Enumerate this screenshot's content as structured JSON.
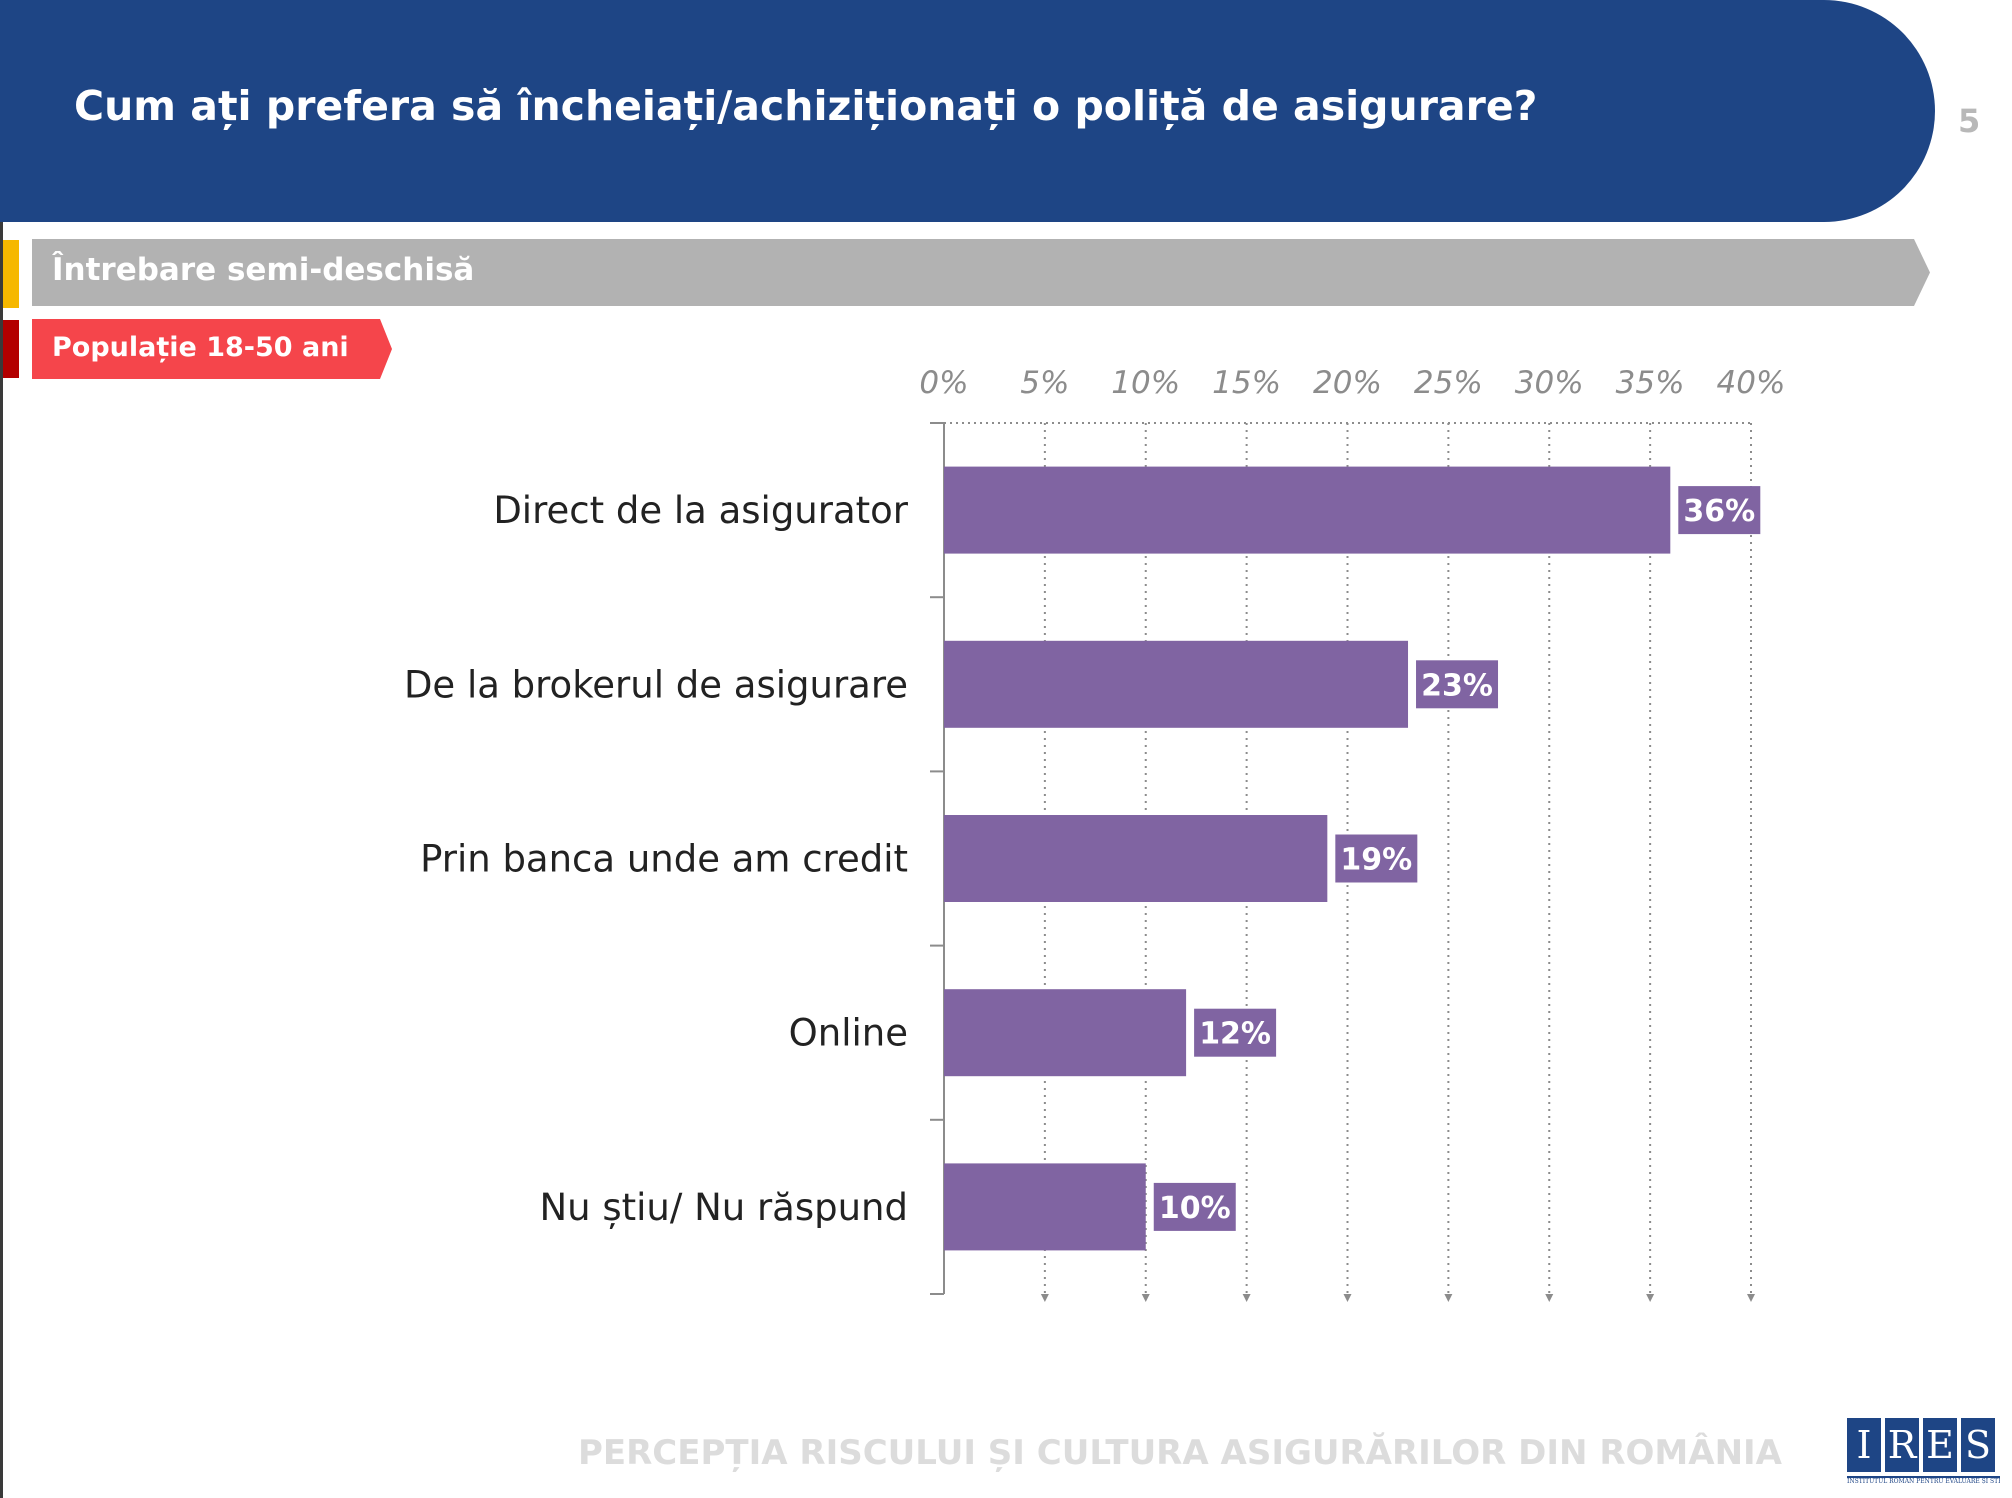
{
  "header": {
    "title": "Cum ați prefera să încheiați/achiziționați o poliță de asigurare?",
    "page_number": "5"
  },
  "tags": {
    "question_type": "Întrebare semi-deschisă",
    "population": "Populație 18-50 ani"
  },
  "footer": {
    "text": "PERCEPȚIA RISCULUI ȘI CULTURA ASIGURĂRILOR DIN ROMÂNIA",
    "logo_letters": [
      "I",
      "R",
      "E",
      "S"
    ],
    "logo_subtitle": "INSTITUTUL ROMÂN PENTRU EVALUARE ȘI STRATEGIE"
  },
  "colors": {
    "header": "#1e4585",
    "bar": "#8064a2",
    "question_tag": "#b2b2b2",
    "population_tag": "#f5454b"
  },
  "chart_data": {
    "type": "bar",
    "orientation": "horizontal",
    "categories": [
      "Direct de la asigurator",
      "De la brokerul de asigurare",
      "Prin banca unde am credit",
      "Online",
      "Nu știu/ Nu răspund"
    ],
    "values": [
      36,
      23,
      19,
      12,
      10
    ],
    "value_labels": [
      "36%",
      "23%",
      "19%",
      "12%",
      "10%"
    ],
    "xlim": [
      0,
      40
    ],
    "x_ticks": [
      0,
      5,
      10,
      15,
      20,
      25,
      30,
      35,
      40
    ],
    "x_tick_labels": [
      "0%",
      "5%",
      "10%",
      "15%",
      "20%",
      "25%",
      "30%",
      "35%",
      "40%"
    ],
    "axis_position": "top",
    "grid": "dotted vertical"
  }
}
